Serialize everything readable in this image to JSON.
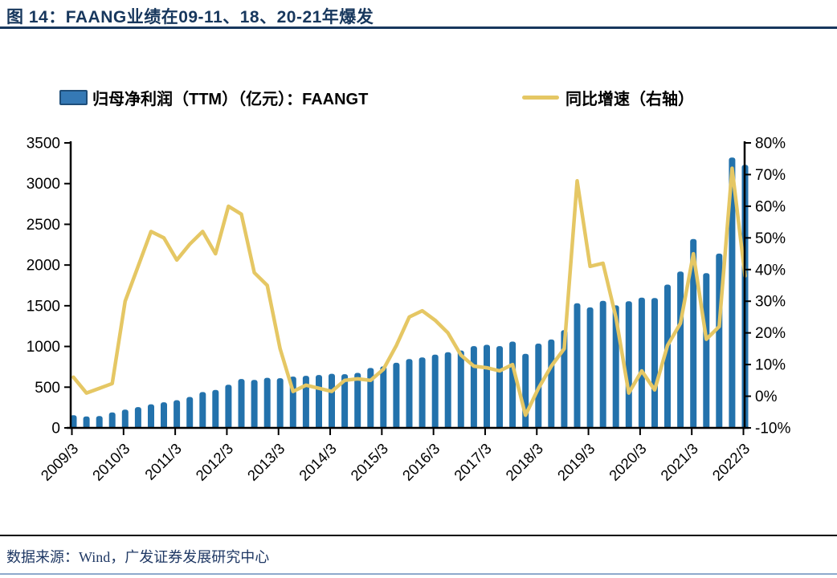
{
  "figure": {
    "title": "图 14：FAANG业绩在09-11、18、20-21年爆发",
    "source": "数据来源：Wind，广发证券发展研究中心"
  },
  "legend": {
    "bar_label": "归母净利润（TTM）（亿元）：FAANGT",
    "line_label": "同比增速（右轴）"
  },
  "colors": {
    "title_navy": "#17375D",
    "bar_fill": "#2372AC",
    "bar_legend_border": "#1F4E79",
    "line_yellow": "#E5C764",
    "axis_black": "#000000",
    "bottom_rule_blue": "#8EA9CC"
  },
  "chart_data": {
    "type": "combo",
    "x_start": "2009/3",
    "x_frequency": "quarterly",
    "x_tick_labels": [
      "2009/3",
      "2010/3",
      "2011/3",
      "2012/3",
      "2013/3",
      "2014/3",
      "2015/3",
      "2016/3",
      "2017/3",
      "2018/3",
      "2019/3",
      "2020/3",
      "2021/3",
      "2022/3"
    ],
    "quarters_per_tick": 4,
    "left_axis": {
      "min": 0,
      "max": 3500,
      "step": 500
    },
    "right_axis": {
      "min": -10,
      "max": 80,
      "step": 10,
      "format": "percent"
    },
    "grid": false,
    "legend_position": "top",
    "series": [
      {
        "name": "归母净利润（TTM）（亿元）：FAANGT",
        "type": "bar",
        "axis": "left",
        "color": "#2372AC",
        "values": [
          155,
          140,
          145,
          190,
          225,
          255,
          290,
          315,
          340,
          380,
          440,
          465,
          530,
          600,
          590,
          615,
          610,
          630,
          640,
          650,
          665,
          660,
          675,
          735,
          755,
          800,
          845,
          865,
          900,
          930,
          950,
          1005,
          1020,
          1005,
          1060,
          910,
          1035,
          1085,
          1200,
          1530,
          1480,
          1560,
          1505,
          1555,
          1600,
          1595,
          1760,
          1920,
          2320,
          1900,
          2140,
          3320,
          3230
        ]
      },
      {
        "name": "同比增速（右轴）",
        "type": "line",
        "axis": "right",
        "color": "#E5C764",
        "values": [
          6,
          1,
          2.5,
          4,
          30,
          41,
          52,
          50,
          43,
          48,
          52,
          45,
          60,
          57.5,
          39,
          35,
          15,
          1.5,
          3.5,
          2.5,
          1.5,
          5,
          5.5,
          5,
          8.5,
          16,
          25,
          27,
          24,
          20,
          13,
          9.5,
          9,
          8,
          10,
          -6,
          2.5,
          9.5,
          15,
          68,
          41,
          42,
          25,
          1,
          8,
          2,
          16,
          23,
          45,
          18,
          22,
          72,
          38
        ]
      }
    ]
  }
}
